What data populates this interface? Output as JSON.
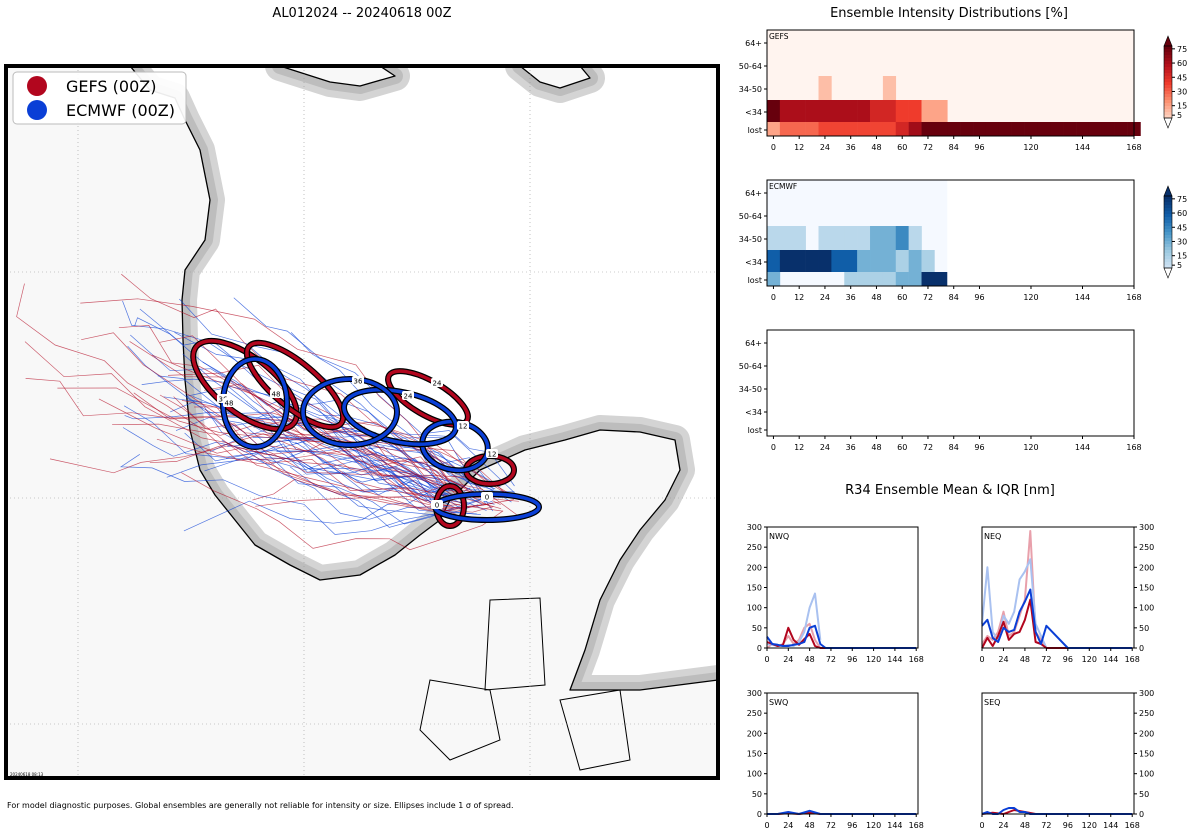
{
  "colors": {
    "gefs": "#b2061e",
    "ecmwf": "#0a3fd6",
    "gefs_light": "#e8a0ab",
    "ecmwf_light": "#a9c1f0",
    "land": "#f8f8f8",
    "buffer": "#cccccc"
  },
  "map": {
    "title": "AL012024 -- 20240618 00Z",
    "stamp": "20240618 08:13",
    "footnote": "For model diagnostic purposes. Global ensembles are generally not reliable for intensity or size. Ellipses include 1 σ of spread.",
    "legend": [
      {
        "label": "GEFS (00Z)",
        "color": "#b2061e"
      },
      {
        "label": "ECMWF (00Z)",
        "color": "#0a3fd6"
      }
    ],
    "ellipse_labels": {
      "gefs": [
        "0",
        "12",
        "24",
        "36",
        "48"
      ],
      "ecmwf": [
        "0",
        "12",
        "24",
        "36",
        "48"
      ]
    }
  },
  "intensity": {
    "title": "Ensemble Intensity Distributions [%]",
    "rows": [
      "64+",
      "50-64",
      "34-50",
      "<34",
      "lost"
    ],
    "xticks": [
      0,
      12,
      24,
      36,
      48,
      60,
      72,
      84,
      96,
      120,
      144,
      168
    ],
    "panels": [
      {
        "name": "GEFS",
        "colormap": "reds",
        "colorbar_ticks": [
          5,
          15,
          30,
          45,
          60,
          75
        ],
        "hours": [
          0,
          6,
          12,
          18,
          24,
          30,
          36,
          42,
          48,
          54,
          60,
          66,
          72,
          78,
          84,
          90,
          96,
          102,
          108,
          114,
          120,
          126,
          132,
          138,
          144,
          150,
          156,
          162,
          168
        ],
        "grid": [
          [
            0,
            0,
            0,
            0,
            0,
            0,
            0,
            0,
            0,
            0,
            0,
            0,
            0,
            0,
            0,
            0,
            0,
            0,
            0,
            0,
            0,
            0,
            0,
            0,
            0,
            0,
            0,
            0,
            0
          ],
          [
            0,
            0,
            0,
            0,
            0,
            0,
            0,
            0,
            0,
            0,
            0,
            0,
            0,
            0,
            0,
            0,
            0,
            0,
            0,
            0,
            0,
            0,
            0,
            0,
            0,
            0,
            0,
            0,
            0
          ],
          [
            0,
            0,
            0,
            0,
            8,
            0,
            0,
            0,
            0,
            8,
            0,
            0,
            0,
            0,
            0,
            0,
            0,
            0,
            0,
            0,
            0,
            0,
            0,
            0,
            0,
            0,
            0,
            0,
            0
          ],
          [
            80,
            62,
            62,
            62,
            62,
            62,
            62,
            62,
            50,
            50,
            40,
            40,
            15,
            15,
            0,
            0,
            0,
            0,
            0,
            0,
            0,
            0,
            0,
            0,
            0,
            0,
            0,
            0,
            0
          ],
          [
            15,
            30,
            30,
            30,
            38,
            38,
            38,
            38,
            38,
            38,
            50,
            65,
            80,
            80,
            80,
            80,
            80,
            80,
            80,
            80,
            80,
            80,
            80,
            80,
            80,
            80,
            80,
            80,
            80
          ]
        ]
      },
      {
        "name": "ECMWF",
        "colormap": "blues",
        "colorbar_ticks": [
          5,
          15,
          30,
          45,
          60,
          75
        ],
        "hours": [
          0,
          6,
          12,
          18,
          24,
          30,
          36,
          42,
          48,
          54,
          60,
          66,
          72,
          78
        ],
        "grid": [
          [
            0,
            0,
            0,
            0,
            0,
            0,
            0,
            0,
            0,
            0,
            0,
            0,
            0,
            0
          ],
          [
            0,
            0,
            0,
            0,
            0,
            0,
            0,
            0,
            0,
            0,
            0,
            0,
            0,
            0
          ],
          [
            10,
            10,
            10,
            0,
            10,
            10,
            10,
            10,
            30,
            30,
            45,
            10,
            0,
            0
          ],
          [
            60,
            80,
            80,
            80,
            80,
            60,
            60,
            30,
            30,
            30,
            15,
            30,
            15,
            0
          ],
          [
            30,
            0,
            0,
            0,
            0,
            0,
            15,
            15,
            15,
            15,
            30,
            30,
            80,
            80
          ]
        ]
      },
      {
        "name": "",
        "colormap": "",
        "colorbar_ticks": [],
        "hours": [],
        "grid": []
      }
    ]
  },
  "r34": {
    "title": "R34 Ensemble Mean & IQR [nm]",
    "yticks": [
      0,
      50,
      100,
      150,
      200,
      250,
      300
    ],
    "xticks": [
      0,
      24,
      48,
      72,
      96,
      120,
      144,
      168
    ],
    "ylim": [
      0,
      300
    ],
    "xlim": [
      0,
      170
    ],
    "panels": [
      {
        "name": "NWQ",
        "series": [
          {
            "name": "GEFS IQR",
            "color": "#e8a0ab",
            "x": [
              0,
              6,
              12,
              18,
              24,
              30,
              36,
              42,
              48,
              54,
              60
            ],
            "y": [
              0,
              10,
              5,
              10,
              30,
              10,
              20,
              50,
              60,
              20,
              0
            ]
          },
          {
            "name": "ECMWF IQR",
            "color": "#a9c1f0",
            "x": [
              0,
              6,
              12,
              18,
              24,
              30,
              36,
              42,
              48,
              54,
              60
            ],
            "y": [
              10,
              8,
              5,
              5,
              8,
              5,
              15,
              40,
              100,
              135,
              20
            ]
          },
          {
            "name": "GEFS mean",
            "color": "#b2061e",
            "x": [
              0,
              6,
              12,
              18,
              24,
              30,
              36,
              42,
              48,
              54,
              60,
              66,
              72,
              96,
              120,
              144,
              168
            ],
            "y": [
              15,
              10,
              5,
              8,
              50,
              20,
              8,
              22,
              35,
              5,
              0,
              0,
              0,
              0,
              0,
              0,
              0
            ]
          },
          {
            "name": "ECMWF mean",
            "color": "#0a3fd6",
            "x": [
              0,
              6,
              12,
              18,
              24,
              30,
              36,
              42,
              48,
              54,
              60,
              66,
              72,
              96,
              120,
              144,
              168
            ],
            "y": [
              28,
              10,
              8,
              5,
              5,
              8,
              10,
              15,
              50,
              55,
              10,
              0,
              0,
              0,
              0,
              0,
              0
            ]
          }
        ]
      },
      {
        "name": "NEQ",
        "series": [
          {
            "name": "GEFS IQR",
            "color": "#e8a0ab",
            "x": [
              0,
              6,
              12,
              18,
              24,
              30,
              36,
              42,
              48,
              54,
              60,
              66,
              72
            ],
            "y": [
              10,
              30,
              20,
              40,
              90,
              30,
              40,
              80,
              120,
              290,
              40,
              20,
              0
            ]
          },
          {
            "name": "ECMWF IQR",
            "color": "#a9c1f0",
            "x": [
              0,
              6,
              12,
              18,
              24,
              30,
              36,
              42,
              48,
              54,
              60,
              66,
              72
            ],
            "y": [
              60,
              200,
              40,
              20,
              80,
              60,
              90,
              170,
              190,
              220,
              60,
              30,
              0
            ]
          },
          {
            "name": "GEFS mean",
            "color": "#b2061e",
            "x": [
              0,
              6,
              12,
              18,
              24,
              30,
              36,
              42,
              48,
              54,
              60,
              66,
              72,
              96,
              120,
              144,
              168
            ],
            "y": [
              0,
              25,
              5,
              30,
              65,
              20,
              35,
              40,
              70,
              120,
              15,
              10,
              0,
              0,
              0,
              0,
              0
            ]
          },
          {
            "name": "ECMWF mean",
            "color": "#0a3fd6",
            "x": [
              0,
              6,
              12,
              18,
              24,
              30,
              36,
              42,
              48,
              54,
              60,
              66,
              72,
              96,
              120,
              144,
              168
            ],
            "y": [
              55,
              70,
              25,
              15,
              50,
              40,
              45,
              90,
              115,
              145,
              40,
              10,
              55,
              0,
              0,
              0,
              0
            ]
          }
        ]
      },
      {
        "name": "SWQ",
        "series": [
          {
            "name": "GEFS mean",
            "color": "#b2061e",
            "x": [
              0,
              12,
              24,
              36,
              48,
              60,
              72,
              96,
              120,
              144,
              168
            ],
            "y": [
              0,
              0,
              2,
              0,
              3,
              0,
              0,
              0,
              0,
              0,
              0
            ]
          },
          {
            "name": "ECMWF mean",
            "color": "#0a3fd6",
            "x": [
              0,
              12,
              24,
              36,
              48,
              60,
              72,
              96,
              120,
              144,
              168
            ],
            "y": [
              0,
              0,
              5,
              0,
              8,
              0,
              0,
              0,
              0,
              0,
              0
            ]
          }
        ]
      },
      {
        "name": "SEQ",
        "series": [
          {
            "name": "GEFS mean",
            "color": "#b2061e",
            "x": [
              0,
              12,
              24,
              36,
              48,
              60,
              72,
              96,
              120,
              144,
              168
            ],
            "y": [
              0,
              3,
              0,
              10,
              5,
              0,
              0,
              0,
              0,
              0,
              0
            ]
          },
          {
            "name": "ECMWF mean",
            "color": "#0a3fd6",
            "x": [
              0,
              6,
              12,
              18,
              24,
              30,
              36,
              42,
              48,
              54,
              60,
              66,
              72,
              96,
              120,
              144,
              168
            ],
            "y": [
              0,
              5,
              0,
              0,
              10,
              15,
              15,
              5,
              5,
              0,
              0,
              0,
              0,
              0,
              0,
              0,
              0
            ]
          }
        ]
      }
    ]
  }
}
